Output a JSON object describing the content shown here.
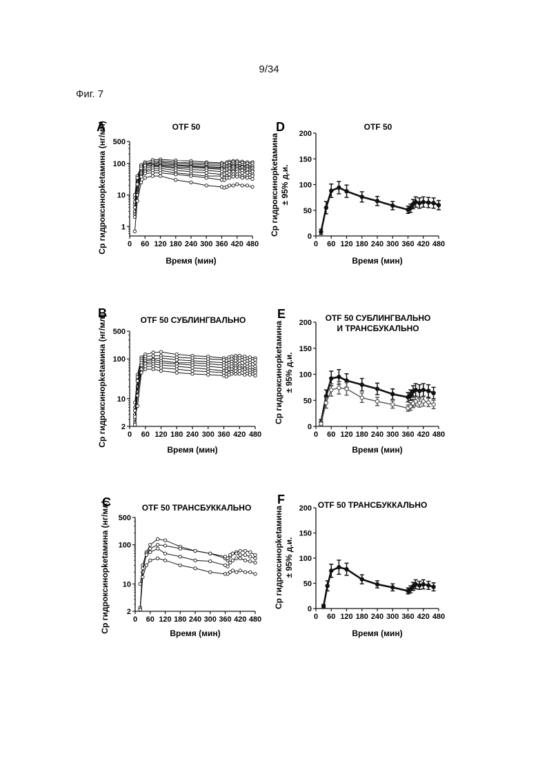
{
  "page": {
    "number": "9/34",
    "figure_label": "Фиг. 7"
  },
  "chart_data": [
    {
      "panel": "A",
      "type": "line",
      "title": "OTF 50",
      "xlabel": "Время (мин)",
      "ylabel": "Cp гидроксинорketамина (нг/мл)",
      "yscale": "log",
      "ylim": [
        0.5,
        500
      ],
      "xlim": [
        0,
        480
      ],
      "yticks": [
        1,
        10,
        100,
        500
      ],
      "ytick_labels": [
        "1",
        "10",
        "100",
        "500"
      ],
      "xticks": [
        0,
        60,
        120,
        180,
        240,
        300,
        360,
        420,
        480
      ],
      "xtick_labels": [
        "0",
        "60",
        "120",
        "180",
        "240",
        "300",
        "360",
        "420",
        "480"
      ],
      "x": [
        20,
        30,
        45,
        60,
        90,
        120,
        180,
        240,
        300,
        360,
        370,
        380,
        390,
        405,
        420,
        440,
        460,
        480
      ],
      "series": [
        {
          "values": [
            8,
            30,
            90,
            110,
            130,
            135,
            125,
            120,
            110,
            105,
            95,
            110,
            115,
            120,
            120,
            115,
            110,
            110
          ]
        },
        {
          "values": [
            5,
            25,
            75,
            95,
            115,
            120,
            110,
            105,
            100,
            95,
            90,
            100,
            105,
            110,
            110,
            105,
            100,
            100
          ]
        },
        {
          "values": [
            10,
            40,
            80,
            100,
            100,
            110,
            100,
            95,
            90,
            85,
            80,
            85,
            90,
            95,
            95,
            90,
            85,
            85
          ]
        },
        {
          "values": [
            4,
            20,
            65,
            90,
            100,
            100,
            90,
            85,
            80,
            75,
            70,
            80,
            85,
            85,
            85,
            80,
            80,
            75
          ]
        },
        {
          "values": [
            3,
            15,
            55,
            80,
            90,
            90,
            85,
            80,
            75,
            70,
            65,
            70,
            75,
            80,
            80,
            75,
            70,
            70
          ]
        },
        {
          "values": [
            6,
            35,
            70,
            85,
            85,
            85,
            75,
            75,
            70,
            65,
            60,
            65,
            70,
            70,
            70,
            65,
            65,
            60
          ]
        },
        {
          "values": [
            2.5,
            12,
            50,
            70,
            80,
            80,
            70,
            65,
            60,
            55,
            50,
            55,
            60,
            60,
            65,
            60,
            55,
            55
          ]
        },
        {
          "values": [
            3,
            20,
            45,
            60,
            70,
            70,
            60,
            55,
            50,
            45,
            45,
            50,
            55,
            55,
            55,
            50,
            50,
            45
          ]
        },
        {
          "values": [
            2,
            10,
            40,
            55,
            60,
            60,
            50,
            45,
            40,
            40,
            35,
            40,
            45,
            45,
            45,
            40,
            40,
            40
          ]
        },
        {
          "values": [
            4,
            22,
            38,
            48,
            50,
            50,
            45,
            40,
            35,
            30,
            30,
            35,
            35,
            38,
            38,
            35,
            35,
            32
          ]
        },
        {
          "values": [
            0.7,
            6.5,
            25,
            35,
            40,
            40,
            30,
            25,
            20,
            18,
            17,
            18,
            20,
            20,
            22,
            20,
            20,
            18
          ]
        }
      ]
    },
    {
      "panel": "D",
      "type": "line",
      "title": "OTF 50",
      "xlabel": "Время (мин)",
      "ylabel": "Cp гидроксинорketамина ± 95% д.и.",
      "ylim": [
        0,
        200
      ],
      "xlim": [
        0,
        480
      ],
      "yticks": [
        0,
        50,
        100,
        150,
        200
      ],
      "ytick_labels": [
        "0",
        "50",
        "100",
        "150",
        "200"
      ],
      "xticks": [
        0,
        60,
        120,
        180,
        240,
        300,
        360,
        420,
        480
      ],
      "xtick_labels": [
        "0",
        "60",
        "120",
        "180",
        "240",
        "300",
        "360",
        "420",
        "480"
      ],
      "x": [
        20,
        40,
        60,
        90,
        120,
        180,
        240,
        300,
        360,
        370,
        380,
        390,
        405,
        420,
        440,
        460,
        480
      ],
      "series": [
        {
          "values": [
            8,
            55,
            88,
            94,
            87,
            76,
            68,
            59,
            51,
            54,
            62,
            66,
            64,
            66,
            65,
            64,
            60
          ],
          "err": [
            5,
            12,
            13,
            12,
            12,
            10,
            9,
            8,
            7,
            8,
            9,
            10,
            10,
            10,
            10,
            10,
            9
          ]
        }
      ]
    },
    {
      "panel": "B",
      "type": "line",
      "title": "OTF 50 СУБЛИНГВАЛЬНО",
      "xlabel": "Время (мин)",
      "ylabel": "Cp гидроксинорketамина (нг/мл)",
      "yscale": "log",
      "ylim": [
        2,
        500
      ],
      "xlim": [
        0,
        480
      ],
      "yticks": [
        2,
        10,
        100,
        500
      ],
      "ytick_labels": [
        "2",
        "10",
        "100",
        "500"
      ],
      "xticks": [
        0,
        60,
        120,
        180,
        240,
        300,
        360,
        420,
        480
      ],
      "xtick_labels": [
        "0",
        "60",
        "120",
        "180",
        "240",
        "300",
        "360",
        "420",
        "480"
      ],
      "x": [
        20,
        30,
        45,
        60,
        90,
        120,
        180,
        240,
        300,
        360,
        370,
        380,
        390,
        405,
        420,
        440,
        460,
        480
      ],
      "series": [
        {
          "values": [
            6,
            40,
            110,
            130,
            145,
            150,
            130,
            120,
            115,
            105,
            100,
            110,
            115,
            120,
            120,
            115,
            110,
            105
          ]
        },
        {
          "values": [
            4,
            30,
            100,
            115,
            120,
            120,
            110,
            105,
            100,
            95,
            90,
            95,
            100,
            105,
            105,
            100,
            95,
            95
          ]
        },
        {
          "values": [
            8,
            35,
            90,
            100,
            100,
            105,
            95,
            90,
            85,
            80,
            75,
            80,
            85,
            90,
            90,
            85,
            80,
            80
          ]
        },
        {
          "values": [
            3,
            20,
            80,
            90,
            95,
            90,
            80,
            80,
            75,
            70,
            65,
            70,
            75,
            75,
            75,
            70,
            70,
            65
          ]
        },
        {
          "values": [
            2.5,
            15,
            65,
            80,
            85,
            80,
            75,
            70,
            65,
            60,
            55,
            60,
            65,
            65,
            65,
            60,
            60,
            55
          ]
        },
        {
          "values": [
            5,
            28,
            70,
            75,
            75,
            70,
            65,
            60,
            55,
            50,
            50,
            55,
            55,
            58,
            58,
            55,
            52,
            50
          ]
        },
        {
          "values": [
            2.2,
            12,
            55,
            65,
            65,
            60,
            55,
            50,
            48,
            45,
            42,
            45,
            48,
            50,
            50,
            48,
            45,
            45
          ]
        },
        {
          "values": [
            3.5,
            6.5,
            45,
            55,
            55,
            50,
            45,
            42,
            40,
            38,
            36,
            40,
            42,
            42,
            42,
            40,
            40,
            38
          ]
        }
      ]
    },
    {
      "panel": "E",
      "type": "line",
      "title": "OTF 50 СУБЛИНГВАЛЬНО\nИ ТРАНСБУКАЛЬНО",
      "xlabel": "Время (мин)",
      "ylabel": "Cp гидроксинорketамина ± 95% д.и.",
      "ylim": [
        0,
        200
      ],
      "xlim": [
        0,
        480
      ],
      "yticks": [
        0,
        50,
        100,
        150,
        200
      ],
      "ytick_labels": [
        "0",
        "50",
        "100",
        "150",
        "200"
      ],
      "xticks": [
        0,
        60,
        120,
        180,
        240,
        300,
        360,
        420,
        480
      ],
      "xtick_labels": [
        "0",
        "60",
        "120",
        "180",
        "240",
        "300",
        "360",
        "420",
        "480"
      ],
      "x": [
        20,
        40,
        60,
        90,
        120,
        180,
        240,
        300,
        360,
        370,
        380,
        390,
        405,
        420,
        440,
        460
      ],
      "series": [
        {
          "values": [
            8,
            58,
            92,
            95,
            88,
            80,
            72,
            62,
            56,
            60,
            67,
            70,
            68,
            70,
            68,
            64
          ],
          "err": [
            5,
            12,
            14,
            14,
            13,
            12,
            11,
            10,
            9,
            10,
            11,
            12,
            12,
            12,
            12,
            11
          ]
        },
        {
          "values": [
            5,
            45,
            70,
            74,
            72,
            55,
            48,
            42,
            35,
            38,
            44,
            48,
            45,
            48,
            46,
            42
          ],
          "err": [
            4,
            10,
            12,
            12,
            12,
            9,
            8,
            7,
            6,
            7,
            8,
            9,
            8,
            9,
            8,
            8
          ]
        }
      ]
    },
    {
      "panel": "C",
      "type": "line",
      "title": "OTF 50 ТРАНСБУККАЛЬНО",
      "xlabel": "Время (мин)",
      "ylabel": "Cp гидроксинорketамина (нг/мл)",
      "yscale": "log",
      "ylim": [
        2,
        500
      ],
      "xlim": [
        0,
        480
      ],
      "yticks": [
        2,
        10,
        100,
        500
      ],
      "ytick_labels": [
        "2",
        "10",
        "100",
        "500"
      ],
      "xticks": [
        0,
        60,
        120,
        180,
        240,
        300,
        360,
        420,
        480
      ],
      "xtick_labels": [
        "0",
        "60",
        "120",
        "180",
        "240",
        "300",
        "360",
        "420",
        "480"
      ],
      "x": [
        20,
        30,
        45,
        60,
        90,
        120,
        180,
        240,
        300,
        360,
        370,
        380,
        390,
        405,
        420,
        440,
        460,
        480
      ],
      "series": [
        {
          "values": [
            2.3,
            30,
            65,
            100,
            140,
            130,
            90,
            70,
            60,
            45,
            40,
            50,
            60,
            65,
            70,
            70,
            65,
            55
          ]
        },
        {
          "values": [
            2.5,
            20,
            60,
            80,
            100,
            95,
            80,
            70,
            60,
            50,
            45,
            55,
            60,
            60,
            55,
            55,
            50,
            45
          ]
        },
        {
          "values": [
            10,
            25,
            55,
            65,
            80,
            60,
            50,
            40,
            38,
            30,
            28,
            35,
            40,
            45,
            45,
            40,
            38,
            35
          ]
        },
        {
          "values": [
            2.2,
            15,
            30,
            40,
            45,
            40,
            30,
            25,
            20,
            18,
            18,
            20,
            22,
            20,
            22,
            20,
            20,
            18
          ]
        }
      ]
    },
    {
      "panel": "F",
      "type": "line",
      "title": "OTF 50 ТРАНСБУККАЛЬНО",
      "xlabel": "Время (мин)",
      "ylabel": "Cp гидроксинорketамина ± 95% д.и.",
      "ylim": [
        0,
        200
      ],
      "xlim": [
        0,
        480
      ],
      "yticks": [
        0,
        50,
        100,
        150,
        200
      ],
      "ytick_labels": [
        "0",
        "50",
        "100",
        "150",
        "200"
      ],
      "xticks": [
        0,
        60,
        120,
        180,
        240,
        300,
        360,
        420,
        480
      ],
      "xtick_labels": [
        "0",
        "60",
        "120",
        "180",
        "240",
        "300",
        "360",
        "420",
        "480"
      ],
      "x": [
        30,
        45,
        60,
        90,
        120,
        180,
        240,
        300,
        360,
        370,
        380,
        390,
        405,
        420,
        440,
        460
      ],
      "series": [
        {
          "values": [
            5,
            45,
            75,
            82,
            78,
            58,
            48,
            42,
            35,
            38,
            44,
            48,
            46,
            48,
            46,
            43
          ],
          "err": [
            3,
            10,
            13,
            14,
            12,
            9,
            7,
            7,
            6,
            7,
            8,
            9,
            8,
            9,
            8,
            8
          ]
        }
      ]
    }
  ]
}
